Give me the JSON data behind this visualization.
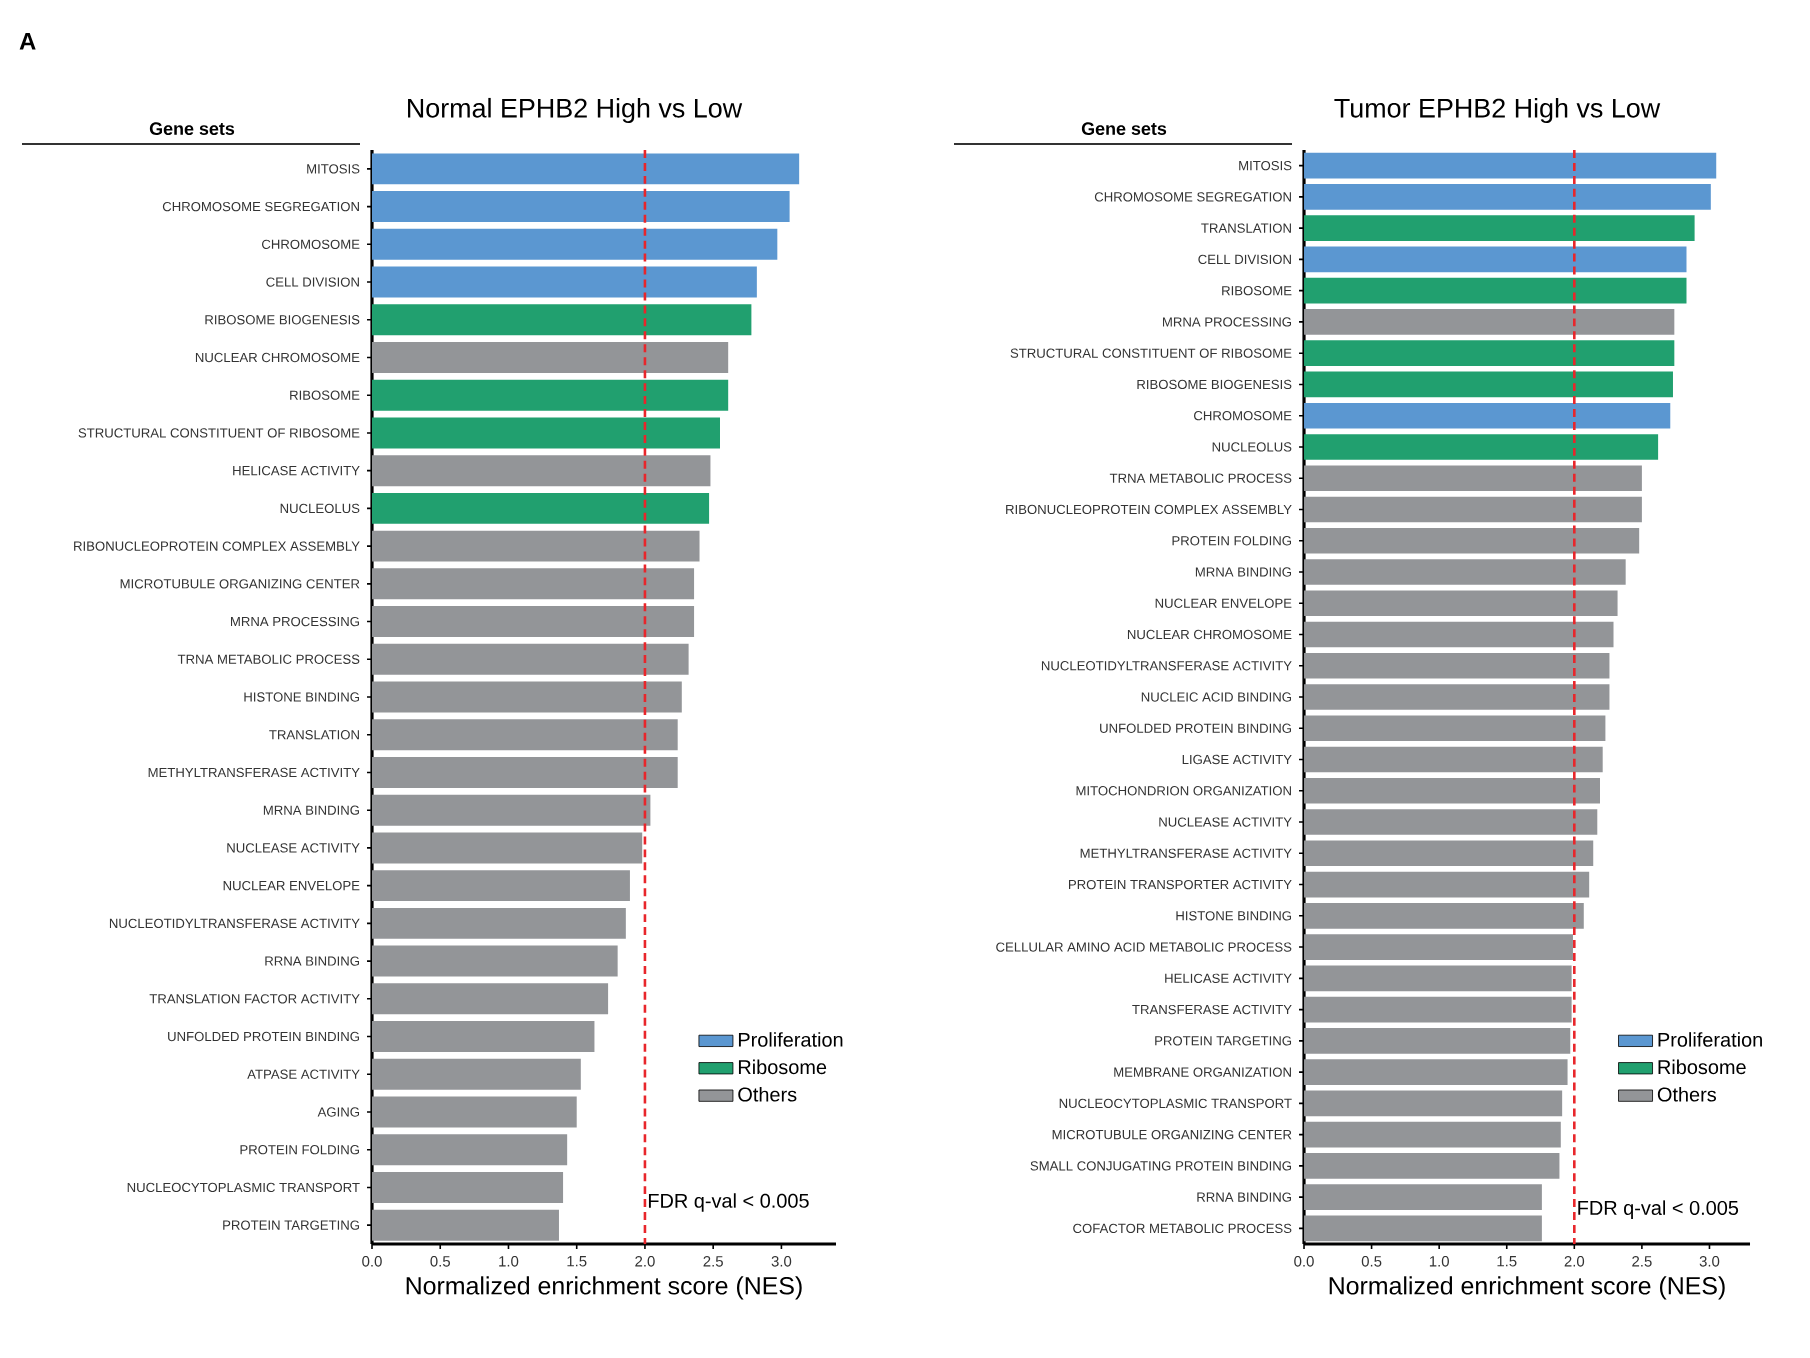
{
  "chart_data": [
    {
      "type": "bar",
      "orientation": "horizontal",
      "title": "Normal EPHB2 High vs Low",
      "xlabel": "Normalized enrichment score (NES)",
      "ylabel": "Gene sets",
      "annotations": [
        "A"
      ],
      "categories": [
        "MITOSIS",
        "CHROMOSOME SEGREGATION",
        "CHROMOSOME",
        "CELL DIVISION",
        "RIBOSOME BIOGENESIS",
        "NUCLEAR CHROMOSOME",
        "RIBOSOME",
        "STRUCTURAL CONSTITUENT OF RIBOSOME",
        "HELICASE ACTIVITY",
        "NUCLEOLUS",
        "RIBONUCLEOPROTEIN COMPLEX ASSEMBLY",
        "MICROTUBULE ORGANIZING CENTER",
        "MRNA PROCESSING",
        "TRNA METABOLIC PROCESS",
        "HISTONE BINDING",
        "TRANSLATION",
        "METHYLTRANSFERASE ACTIVITY",
        "MRNA BINDING",
        "NUCLEASE ACTIVITY",
        "NUCLEAR ENVELOPE",
        "NUCLEOTIDYLTRANSFERASE ACTIVITY",
        "RRNA BINDING",
        "TRANSLATION FACTOR ACTIVITY",
        "UNFOLDED PROTEIN BINDING",
        "ATPASE ACTIVITY",
        "AGING",
        "PROTEIN FOLDING",
        "NUCLEOCYTOPLASMIC TRANSPORT",
        "PROTEIN TARGETING"
      ],
      "series": [
        {
          "name": "Proliferation",
          "color": "#5b97d1",
          "values": [
            3.13,
            3.06,
            2.97,
            2.82,
            null,
            null,
            null,
            null,
            null,
            null,
            null,
            null,
            null,
            null,
            null,
            null,
            null,
            null,
            null,
            null,
            null,
            null,
            null,
            null,
            null,
            null,
            null,
            null,
            null
          ]
        },
        {
          "name": "Ribosome",
          "color": "#21a06f",
          "values": [
            null,
            null,
            null,
            null,
            2.78,
            null,
            2.61,
            2.55,
            null,
            2.47,
            null,
            null,
            null,
            null,
            null,
            null,
            null,
            null,
            null,
            null,
            null,
            null,
            null,
            null,
            null,
            null,
            null,
            null,
            null
          ]
        },
        {
          "name": "Others",
          "color": "#939598",
          "values": [
            null,
            null,
            null,
            null,
            null,
            2.61,
            null,
            null,
            2.48,
            null,
            2.4,
            2.36,
            2.36,
            2.32,
            2.27,
            2.24,
            2.24,
            2.04,
            1.98,
            1.89,
            1.86,
            1.8,
            1.73,
            1.63,
            1.53,
            1.5,
            1.43,
            1.4,
            1.37
          ]
        }
      ],
      "xlim": [
        0,
        3.4
      ],
      "xticks": [
        {
          "value": 0,
          "label": "0.0"
        },
        {
          "value": 0.5,
          "label": "0.5"
        },
        {
          "value": 1,
          "label": "1.0"
        },
        {
          "value": 1.5,
          "label": "1.5"
        },
        {
          "value": 2,
          "label": "2.0"
        },
        {
          "value": 2.5,
          "label": "2.5"
        },
        {
          "value": 3,
          "label": "3.0"
        }
      ],
      "ref_lines": [
        {
          "axis": "x",
          "value": 2,
          "label": "FDR q-val < 0.005",
          "color": "#e8262b",
          "line_style": "dashed"
        }
      ],
      "legend": "bottom right"
    },
    {
      "type": "bar",
      "orientation": "horizontal",
      "title": "Tumor EPHB2 High vs Low",
      "xlabel": "Normalized enrichment score (NES)",
      "ylabel": "Gene sets",
      "categories": [
        "MITOSIS",
        "CHROMOSOME SEGREGATION",
        "TRANSLATION",
        "CELL DIVISION",
        "RIBOSOME",
        "MRNA PROCESSING",
        "STRUCTURAL CONSTITUENT OF RIBOSOME",
        "RIBOSOME BIOGENESIS",
        "CHROMOSOME",
        "NUCLEOLUS",
        "TRNA METABOLIC PROCESS",
        "RIBONUCLEOPROTEIN COMPLEX ASSEMBLY",
        "PROTEIN FOLDING",
        "MRNA BINDING",
        "NUCLEAR ENVELOPE",
        "NUCLEAR CHROMOSOME",
        "NUCLEOTIDYLTRANSFERASE ACTIVITY",
        "NUCLEIC ACID BINDING",
        "UNFOLDED PROTEIN BINDING",
        "LIGASE ACTIVITY",
        "MITOCHONDRION ORGANIZATION",
        "NUCLEASE ACTIVITY",
        "METHYLTRANSFERASE ACTIVITY",
        "PROTEIN TRANSPORTER ACTIVITY",
        "HISTONE BINDING",
        "CELLULAR AMINO ACID METABOLIC PROCESS",
        "HELICASE ACTIVITY",
        "TRANSFERASE ACTIVITY",
        "PROTEIN TARGETING",
        "MEMBRANE ORGANIZATION",
        "NUCLEOCYTOPLASMIC TRANSPORT",
        "MICROTUBULE ORGANIZING CENTER",
        "SMALL CONJUGATING PROTEIN BINDING",
        "RRNA BINDING",
        "COFACTOR METABOLIC PROCESS"
      ],
      "series": [
        {
          "name": "Proliferation",
          "color": "#5b97d1",
          "values": [
            3.05,
            3.01,
            null,
            2.83,
            null,
            null,
            null,
            null,
            2.71,
            null,
            null,
            null,
            null,
            null,
            null,
            null,
            null,
            null,
            null,
            null,
            null,
            null,
            null,
            null,
            null,
            null,
            null,
            null,
            null,
            null,
            null,
            null,
            null,
            null,
            null
          ]
        },
        {
          "name": "Ribosome",
          "color": "#21a06f",
          "values": [
            null,
            null,
            2.89,
            null,
            2.83,
            null,
            2.74,
            2.73,
            null,
            2.62,
            null,
            null,
            null,
            null,
            null,
            null,
            null,
            null,
            null,
            null,
            null,
            null,
            null,
            null,
            null,
            null,
            null,
            null,
            null,
            null,
            null,
            null,
            null,
            null,
            null
          ]
        },
        {
          "name": "Others",
          "color": "#939598",
          "values": [
            null,
            null,
            null,
            null,
            null,
            2.74,
            null,
            null,
            null,
            null,
            2.5,
            2.5,
            2.48,
            2.38,
            2.32,
            2.29,
            2.26,
            2.26,
            2.23,
            2.21,
            2.19,
            2.17,
            2.14,
            2.11,
            2.07,
            1.99,
            1.98,
            1.98,
            1.97,
            1.95,
            1.91,
            1.9,
            1.89,
            1.76,
            1.76
          ]
        }
      ],
      "xlim": [
        0,
        3.3
      ],
      "xticks": [
        {
          "value": 0,
          "label": "0.0"
        },
        {
          "value": 0.5,
          "label": "0.5"
        },
        {
          "value": 1,
          "label": "1.0"
        },
        {
          "value": 1.5,
          "label": "1.5"
        },
        {
          "value": 2,
          "label": "2.0"
        },
        {
          "value": 2.5,
          "label": "2.5"
        },
        {
          "value": 3,
          "label": "3.0"
        }
      ],
      "ref_lines": [
        {
          "axis": "x",
          "value": 2,
          "label": "FDR q-val < 0.005",
          "color": "#e8262b",
          "line_style": "dashed"
        }
      ],
      "legend": "bottom right"
    }
  ]
}
